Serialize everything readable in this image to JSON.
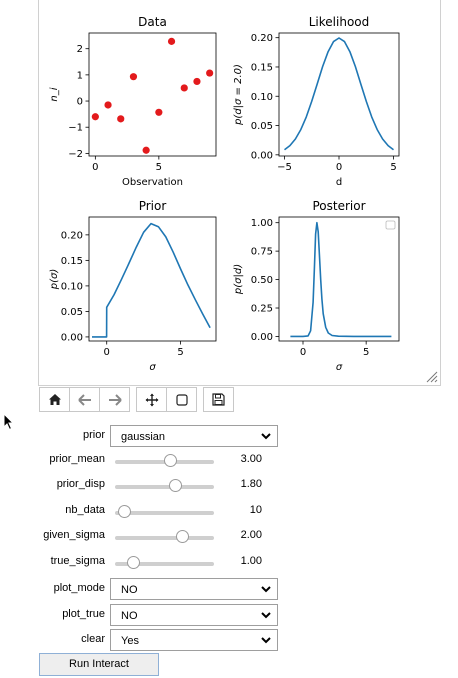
{
  "figure": {
    "resize_icon": "resize-grip-icon",
    "chart_data": [
      {
        "type": "scatter",
        "title": "Data",
        "xlabel": "Observation",
        "ylabel": "n_i",
        "xlim": [
          -0.5,
          9.5
        ],
        "ylim": [
          -2.1,
          2.6
        ],
        "xticks": [
          0,
          5
        ],
        "yticks": [
          -2,
          -1,
          0,
          1,
          2
        ],
        "xtick_labels": [
          "0",
          "5"
        ],
        "ytick_labels": [
          "−2",
          "−1",
          "0",
          "1",
          "2"
        ],
        "color": "#e31a1c",
        "x": [
          0,
          1,
          2,
          3,
          4,
          5,
          6,
          7,
          8,
          9
        ],
        "y": [
          -0.6,
          -0.15,
          -0.68,
          0.93,
          -1.88,
          -0.43,
          2.28,
          0.5,
          0.75,
          1.07
        ]
      },
      {
        "type": "line",
        "title": "Likelihood",
        "xlabel": "d",
        "ylabel": "p(d|σ = 2.0)",
        "xlim": [
          -5.5,
          5.5
        ],
        "ylim": [
          -0.002,
          0.208
        ],
        "xticks": [
          -5,
          0,
          5
        ],
        "yticks": [
          0.0,
          0.05,
          0.1,
          0.15,
          0.2
        ],
        "xtick_labels": [
          "−5",
          "0",
          "5"
        ],
        "ytick_labels": [
          "0.00",
          "0.05",
          "0.10",
          "0.15",
          "0.20"
        ],
        "color": "#1f77b4",
        "x": [
          -5,
          -4.5,
          -4,
          -3.5,
          -3,
          -2.5,
          -2,
          -1.5,
          -1,
          -0.5,
          0,
          0.5,
          1,
          1.5,
          2,
          2.5,
          3,
          3.5,
          4,
          4.5,
          5
        ],
        "y": [
          0.0088,
          0.0158,
          0.027,
          0.043,
          0.0648,
          0.0913,
          0.121,
          0.1506,
          0.176,
          0.1933,
          0.1995,
          0.1933,
          0.176,
          0.1506,
          0.121,
          0.0913,
          0.0648,
          0.043,
          0.027,
          0.0158,
          0.0088
        ]
      },
      {
        "type": "line",
        "title": "Prior",
        "xlabel": "σ",
        "ylabel": "p(σ)",
        "xlim": [
          -1.2,
          7.4
        ],
        "ylim": [
          -0.008,
          0.235
        ],
        "xticks": [
          0,
          5
        ],
        "yticks": [
          0.0,
          0.05,
          0.1,
          0.15,
          0.2
        ],
        "xtick_labels": [
          "0",
          "5"
        ],
        "ytick_labels": [
          "0.00",
          "0.05",
          "0.10",
          "0.15",
          "0.20"
        ],
        "color": "#1f77b4",
        "x": [
          -1,
          -0.01,
          0,
          0.5,
          1,
          1.5,
          2,
          2.5,
          3,
          3.5,
          4,
          4.5,
          5,
          5.5,
          6,
          6.5,
          7
        ],
        "y": [
          0,
          0,
          0.058,
          0.083,
          0.113,
          0.144,
          0.176,
          0.205,
          0.222,
          0.216,
          0.196,
          0.166,
          0.133,
          0.102,
          0.073,
          0.045,
          0.018
        ]
      },
      {
        "type": "line",
        "title": "Posterior",
        "xlabel": "σ",
        "ylabel": "p(σ|d)",
        "xlim": [
          -1.9,
          7.6
        ],
        "ylim": [
          -0.04,
          1.05
        ],
        "xticks": [
          0,
          5
        ],
        "yticks": [
          0.0,
          0.25,
          0.5,
          0.75,
          1.0
        ],
        "xtick_labels": [
          "0",
          "5"
        ],
        "ytick_labels": [
          "0.00",
          "0.25",
          "0.50",
          "0.75",
          "1.00"
        ],
        "legend": "top-right",
        "color": "#1f77b4",
        "x": [
          -1,
          0,
          0.4,
          0.6,
          0.8,
          0.9,
          1.0,
          1.1,
          1.2,
          1.3,
          1.4,
          1.5,
          1.6,
          1.8,
          2.0,
          2.3,
          2.8,
          4,
          7
        ],
        "y": [
          0,
          0,
          0.005,
          0.05,
          0.3,
          0.6,
          0.9,
          1.0,
          0.92,
          0.72,
          0.5,
          0.33,
          0.2,
          0.08,
          0.03,
          0.008,
          0.002,
          0,
          0
        ]
      }
    ]
  },
  "toolbar": {
    "buttons": [
      {
        "name": "home-button",
        "icon": "home-icon"
      },
      {
        "name": "back-button",
        "icon": "arrow-left-icon"
      },
      {
        "name": "forward-button",
        "icon": "arrow-right-icon"
      },
      {
        "name": "pan-button",
        "icon": "move-icon"
      },
      {
        "name": "zoom-button",
        "icon": "zoom-rect-icon"
      },
      {
        "name": "save-button",
        "icon": "floppy-icon"
      }
    ]
  },
  "controls": {
    "prior": {
      "label": "prior",
      "value": "gaussian"
    },
    "prior_mean": {
      "label": "prior_mean",
      "value": "3.00",
      "fraction": 0.56
    },
    "prior_disp": {
      "label": "prior_disp",
      "value": "1.80",
      "fraction": 0.61
    },
    "nb_data": {
      "label": "nb_data",
      "value": "10",
      "fraction": 0.1
    },
    "given_sigma": {
      "label": "given_sigma",
      "value": "2.00",
      "fraction": 0.68
    },
    "true_sigma": {
      "label": "true_sigma",
      "value": "1.00",
      "fraction": 0.19
    },
    "plot_mode": {
      "label": "plot_mode",
      "value": "NO"
    },
    "plot_true": {
      "label": "plot_true",
      "value": "NO"
    },
    "clear": {
      "label": "clear",
      "value": "Yes"
    }
  },
  "run_button": {
    "label": "Run Interact"
  }
}
